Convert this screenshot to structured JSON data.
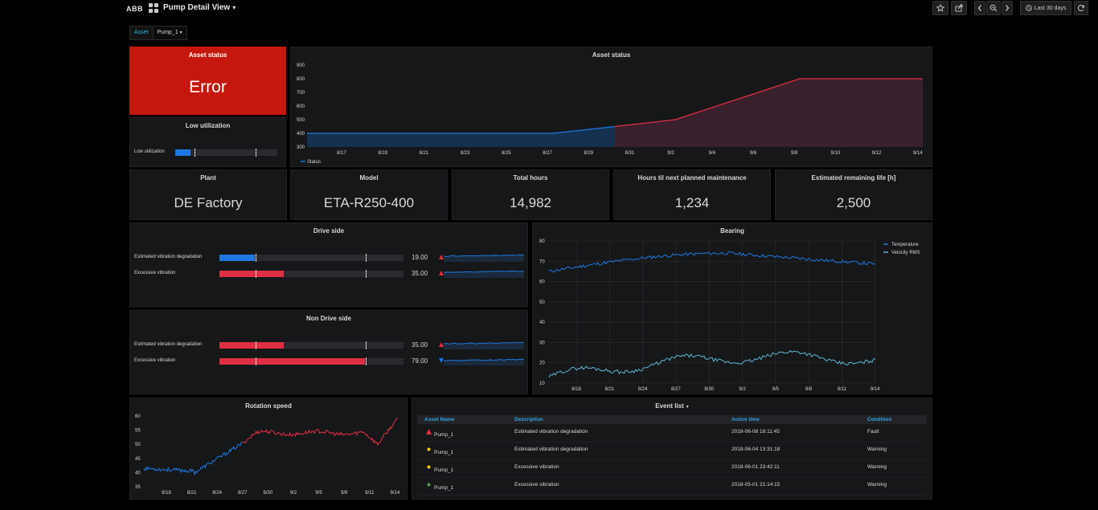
{
  "topbar": {
    "brand": "ABB",
    "title": "Pump Detail View",
    "time_range": "Last 30 days"
  },
  "variables": {
    "label": "Asset",
    "value": "Pump_1"
  },
  "asset_status_panel": {
    "title": "Asset status",
    "value": "Error"
  },
  "low_util_panel": {
    "title": "Low utilization",
    "label": "Low utilization",
    "fill": 0.15,
    "marks": [
      0.19,
      0.79
    ]
  },
  "status_chart": {
    "title": "Asset status",
    "legend": "Status",
    "y_ticks": [
      "900",
      "800",
      "700",
      "600",
      "500",
      "400",
      "300"
    ],
    "x_ticks": [
      "8/17",
      "8/19",
      "8/21",
      "8/23",
      "8/25",
      "8/27",
      "8/29",
      "8/31",
      "9/2",
      "9/4",
      "9/6",
      "9/8",
      "9/10",
      "9/12",
      "9/14"
    ]
  },
  "stats": [
    {
      "title": "Plant",
      "value": "DE Factory"
    },
    {
      "title": "Model",
      "value": "ETA-R250-400"
    },
    {
      "title": "Total hours",
      "value": "14,982"
    },
    {
      "title": "Hours til next planned maintenance",
      "value": "1,234"
    },
    {
      "title": "Estimated remaining life [h]",
      "value": "2,500"
    }
  ],
  "drive_side": {
    "title": "Drive side",
    "rows": [
      {
        "label": "Estimated vibration degradation",
        "value": "19.00",
        "fill": 0.19,
        "color": "#1f78e1",
        "arrow": "up"
      },
      {
        "label": "Excessive vibration",
        "value": "35.00",
        "fill": 0.35,
        "color": "#e02f44",
        "arrow": "up"
      }
    ]
  },
  "non_drive_side": {
    "title": "Non Drive side",
    "rows": [
      {
        "label": "Estimated vibration degradation",
        "value": "35.00",
        "fill": 0.35,
        "color": "#e02f44",
        "arrow": "up"
      },
      {
        "label": "Excessive vibration",
        "value": "79.00",
        "fill": 0.79,
        "color": "#e02f44",
        "arrow": "down"
      }
    ]
  },
  "bearing_chart": {
    "title": "Bearing",
    "legend": [
      "Temperature",
      "Velocity RMS"
    ],
    "y_ticks": [
      "80",
      "70",
      "60",
      "50",
      "40",
      "30",
      "20",
      "10"
    ],
    "x_ticks": [
      "8/18",
      "8/21",
      "8/24",
      "8/27",
      "8/30",
      "9/2",
      "9/5",
      "9/8",
      "9/11",
      "9/14"
    ]
  },
  "rotation_chart": {
    "title": "Rotation speed",
    "y_ticks": [
      "60",
      "55",
      "50",
      "45",
      "40",
      "35"
    ],
    "x_ticks": [
      "8/18",
      "8/21",
      "8/24",
      "8/27",
      "8/30",
      "9/2",
      "9/5",
      "9/8",
      "9/11",
      "9/14"
    ]
  },
  "event_list": {
    "title": "Event list",
    "columns": [
      "Asset Name",
      "Description",
      "Active time",
      "Condition"
    ],
    "rows": [
      {
        "asset": "Pump_1",
        "description": "Estimated vibration degradation",
        "time": "2018-06-08 18:11:45",
        "condition": "Fault",
        "icon": "fault",
        "icon_color": "#e02f44"
      },
      {
        "asset": "Pump_1",
        "description": "Estimated vibration degradation",
        "time": "2018-06-04 13:31:18",
        "condition": "Warning",
        "icon": "warning",
        "icon_color": "#f2cc0c"
      },
      {
        "asset": "Pump_1",
        "description": "Excessive vibration",
        "time": "2018-06-01 23:42:11",
        "condition": "Warning",
        "icon": "warning",
        "icon_color": "#f2cc0c"
      },
      {
        "asset": "Pump_1",
        "description": "Excessive vibration",
        "time": "2018-05-01 21:14:15",
        "condition": "Warning",
        "icon": "ok",
        "icon_color": "#56a64b"
      }
    ]
  },
  "colors": {
    "blue": "#1f78e1",
    "red": "#e02f44",
    "cyan": "#5fb7d5",
    "panel": "#161719"
  }
}
